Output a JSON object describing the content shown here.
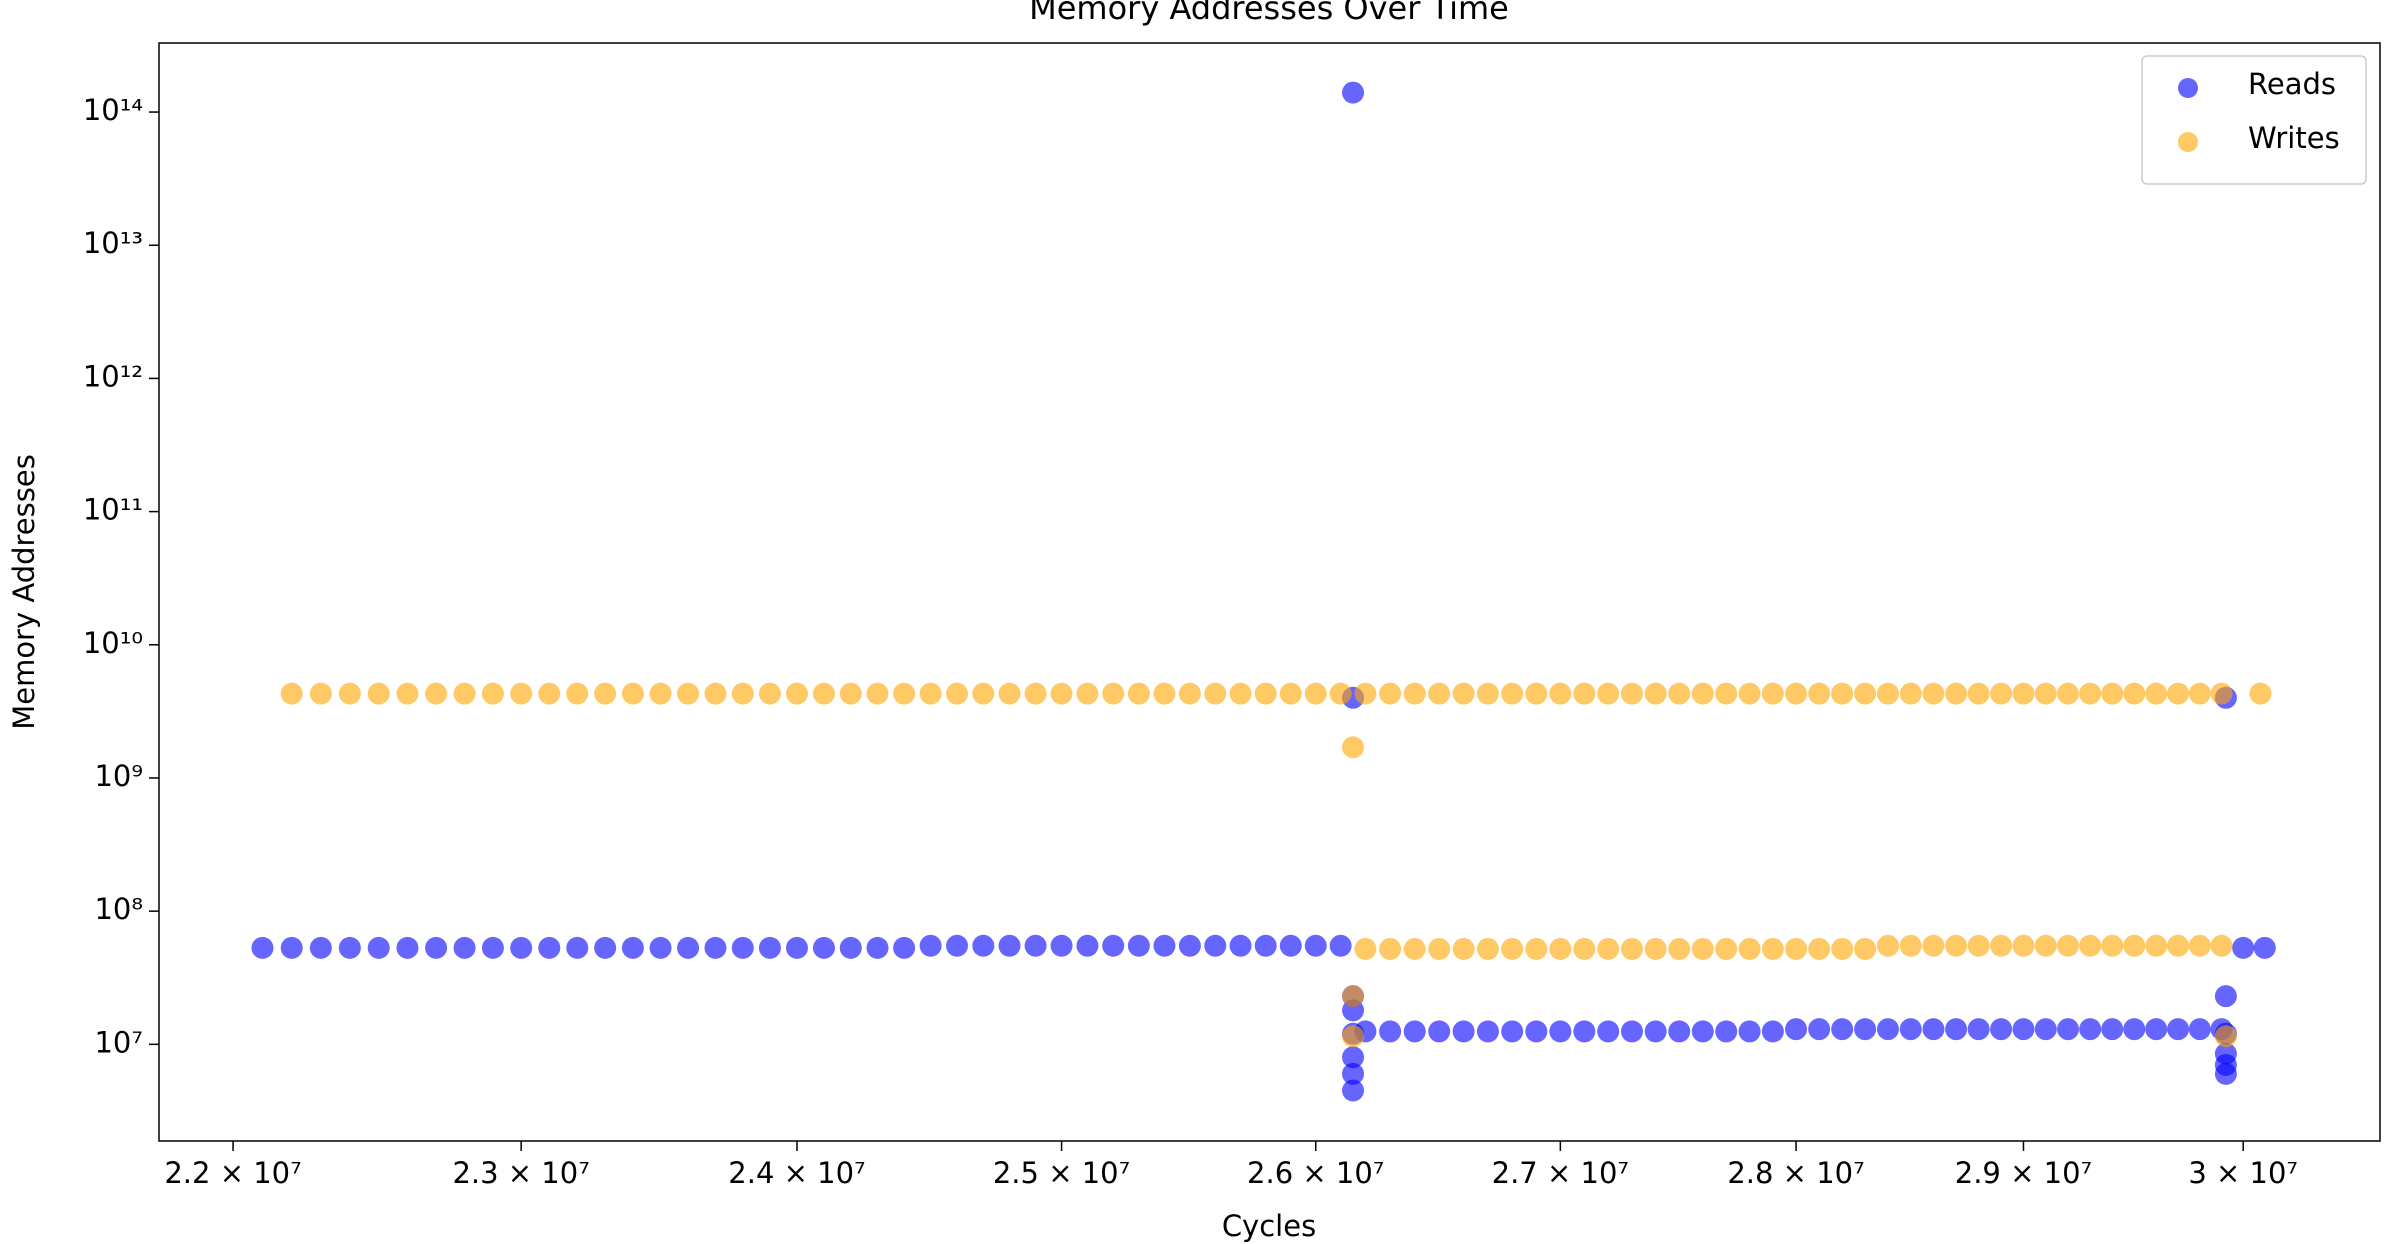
{
  "chart_data": {
    "type": "scatter",
    "title": "Memory Addresses Over Time",
    "x_label": "Cycles",
    "y_label": "Memory Addresses",
    "xscale": "log",
    "yscale": "log",
    "legend": "upper right",
    "xlim": [
      21750000,
      30640000
    ],
    "xticks": [
      {
        "value": 22000000,
        "label": "2.2 × 10⁷"
      },
      {
        "value": 23000000,
        "label": "2.3 × 10⁷"
      },
      {
        "value": 24000000,
        "label": "2.4 × 10⁷"
      },
      {
        "value": 25000000,
        "label": "2.5 × 10⁷"
      },
      {
        "value": 26000000,
        "label": "2.6 × 10⁷"
      },
      {
        "value": 27000000,
        "label": "2.7 × 10⁷"
      },
      {
        "value": 28000000,
        "label": "2.8 × 10⁷"
      },
      {
        "value": 29000000,
        "label": "2.9 × 10⁷"
      },
      {
        "value": 30000000,
        "label": "3 × 10⁷"
      }
    ],
    "ylim": [
      1880000,
      330000000000000
    ],
    "yticks": [
      {
        "value": 10000000,
        "label": "10⁷"
      },
      {
        "value": 100000000,
        "label": "10⁸"
      },
      {
        "value": 1000000000,
        "label": "10⁹"
      },
      {
        "value": 10000000000,
        "label": "10¹⁰"
      },
      {
        "value": 100000000000,
        "label": "10¹¹"
      },
      {
        "value": 1000000000000,
        "label": "10¹²"
      },
      {
        "value": 10000000000000,
        "label": "10¹³"
      },
      {
        "value": 100000000000000,
        "label": "10¹⁴"
      }
    ],
    "series": [
      {
        "name": "Reads",
        "color": "#0000ff",
        "x": [
          22100000,
          22200000,
          22300000,
          22400000,
          22500000,
          22600000,
          22700000,
          22800000,
          22900000,
          23000000,
          23100000,
          23200000,
          23300000,
          23400000,
          23500000,
          23600000,
          23700000,
          23800000,
          23900000,
          24000000,
          24100000,
          24200000,
          24300000,
          24400000,
          24500000,
          24600000,
          24700000,
          24800000,
          24900000,
          25000000,
          25100000,
          25200000,
          25300000,
          25400000,
          25500000,
          25600000,
          25700000,
          25800000,
          25900000,
          26000000,
          26100000,
          26150000,
          26150000,
          26150000,
          26150000,
          26150000,
          26150000,
          26150000,
          26150000,
          26200000,
          26300000,
          26400000,
          26500000,
          26600000,
          26700000,
          26800000,
          26900000,
          27000000,
          27100000,
          27200000,
          27300000,
          27400000,
          27500000,
          27600000,
          27700000,
          27800000,
          27900000,
          28000000,
          28100000,
          28200000,
          28300000,
          28400000,
          28500000,
          28600000,
          28700000,
          28800000,
          28900000,
          29000000,
          29100000,
          29200000,
          29300000,
          29400000,
          29500000,
          29600000,
          29700000,
          29800000,
          29900000,
          29920000,
          29920000,
          29920000,
          29920000,
          29920000,
          29920000,
          30000000,
          30100000
        ],
        "values": [
          53000000,
          53000000,
          53000000,
          53000000,
          53000000,
          53000000,
          53000000,
          53000000,
          53000000,
          53000000,
          53000000,
          53000000,
          53000000,
          53000000,
          53000000,
          53000000,
          53000000,
          53000000,
          53000000,
          53000000,
          53000000,
          53000000,
          53000000,
          53000000,
          55000000,
          55000000,
          55000000,
          55000000,
          55000000,
          55000000,
          55000000,
          55000000,
          55000000,
          55000000,
          55000000,
          55000000,
          55000000,
          55000000,
          55000000,
          55000000,
          55000000,
          140000000000000,
          4000000000,
          23000000,
          18000000,
          12000000,
          8000000,
          6000000,
          4500000,
          12500000,
          12500000,
          12500000,
          12500000,
          12500000,
          12500000,
          12500000,
          12500000,
          12500000,
          12500000,
          12500000,
          12500000,
          12500000,
          12500000,
          12500000,
          12500000,
          12500000,
          12500000,
          13000000,
          13000000,
          13000000,
          13000000,
          13000000,
          13000000,
          13000000,
          13000000,
          13000000,
          13000000,
          13000000,
          13000000,
          13000000,
          13000000,
          13000000,
          13000000,
          13000000,
          13000000,
          13000000,
          13000000,
          4000000000,
          23000000,
          12000000,
          8500000,
          7000000,
          6000000,
          53000000,
          53000000
        ]
      },
      {
        "name": "Writes",
        "color": "#ffa500",
        "x": [
          22200000,
          22300000,
          22400000,
          22500000,
          22600000,
          22700000,
          22800000,
          22900000,
          23000000,
          23100000,
          23200000,
          23300000,
          23400000,
          23500000,
          23600000,
          23700000,
          23800000,
          23900000,
          24000000,
          24100000,
          24200000,
          24300000,
          24400000,
          24500000,
          24600000,
          24700000,
          24800000,
          24900000,
          25000000,
          25100000,
          25200000,
          25300000,
          25400000,
          25500000,
          25600000,
          25700000,
          25800000,
          25900000,
          26000000,
          26100000,
          26200000,
          26300000,
          26400000,
          26500000,
          26600000,
          26700000,
          26800000,
          26900000,
          27000000,
          27100000,
          27200000,
          27300000,
          27400000,
          27500000,
          27600000,
          27700000,
          27800000,
          27900000,
          28000000,
          28100000,
          28200000,
          28300000,
          28400000,
          28500000,
          28600000,
          28700000,
          28800000,
          28900000,
          29000000,
          29100000,
          29200000,
          29300000,
          29400000,
          29500000,
          29600000,
          29700000,
          29800000,
          29900000,
          30080000,
          26150000,
          26150000,
          26150000,
          26200000,
          26300000,
          26400000,
          26500000,
          26600000,
          26700000,
          26800000,
          26900000,
          27000000,
          27100000,
          27200000,
          27300000,
          27400000,
          27500000,
          27600000,
          27700000,
          27800000,
          27900000,
          28000000,
          28100000,
          28200000,
          28300000,
          28400000,
          28500000,
          28600000,
          28700000,
          28800000,
          28900000,
          29000000,
          29100000,
          29200000,
          29300000,
          29400000,
          29500000,
          29600000,
          29700000,
          29800000,
          29900000,
          29920000
        ],
        "values": [
          4300000000,
          4300000000,
          4300000000,
          4300000000,
          4300000000,
          4300000000,
          4300000000,
          4300000000,
          4300000000,
          4300000000,
          4300000000,
          4300000000,
          4300000000,
          4300000000,
          4300000000,
          4300000000,
          4300000000,
          4300000000,
          4300000000,
          4300000000,
          4300000000,
          4300000000,
          4300000000,
          4300000000,
          4300000000,
          4300000000,
          4300000000,
          4300000000,
          4300000000,
          4300000000,
          4300000000,
          4300000000,
          4300000000,
          4300000000,
          4300000000,
          4300000000,
          4300000000,
          4300000000,
          4300000000,
          4300000000,
          4300000000,
          4300000000,
          4300000000,
          4300000000,
          4300000000,
          4300000000,
          4300000000,
          4300000000,
          4300000000,
          4300000000,
          4300000000,
          4300000000,
          4300000000,
          4300000000,
          4300000000,
          4300000000,
          4300000000,
          4300000000,
          4300000000,
          4300000000,
          4300000000,
          4300000000,
          4300000000,
          4300000000,
          4300000000,
          4300000000,
          4300000000,
          4300000000,
          4300000000,
          4300000000,
          4300000000,
          4300000000,
          4300000000,
          4300000000,
          4300000000,
          4300000000,
          4300000000,
          4300000000,
          4300000000,
          1700000000,
          23000000,
          11500000,
          52000000,
          52000000,
          52000000,
          52000000,
          52000000,
          52000000,
          52000000,
          52000000,
          52000000,
          52000000,
          52000000,
          52000000,
          52000000,
          52000000,
          52000000,
          52000000,
          52000000,
          52000000,
          52000000,
          52000000,
          52000000,
          52000000,
          55000000,
          55000000,
          55000000,
          55000000,
          55000000,
          55000000,
          55000000,
          55000000,
          55000000,
          55000000,
          55000000,
          55000000,
          55000000,
          55000000,
          55000000,
          55000000,
          11500000
        ]
      }
    ]
  }
}
